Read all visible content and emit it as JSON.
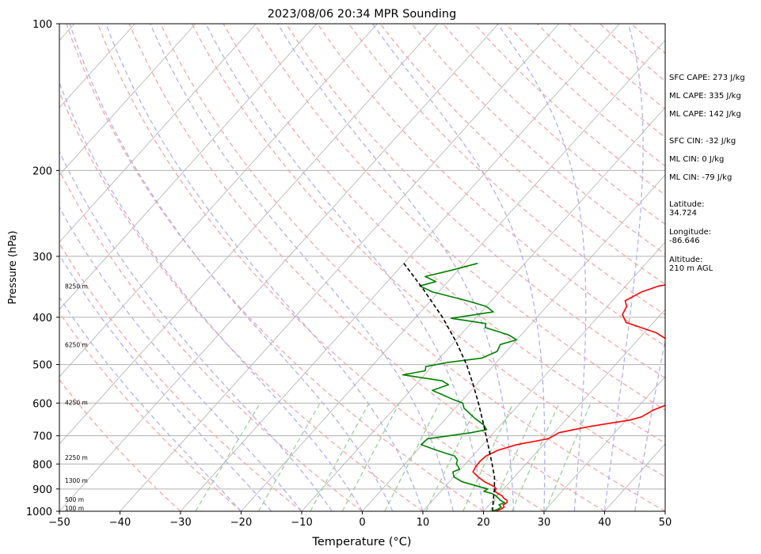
{
  "chart_data": {
    "type": "line",
    "subtype": "skew-t log-p sounding",
    "title": "2023/08/06 20:34 MPR Sounding",
    "xlabel": "Temperature (°C)",
    "ylabel": "Pressure (hPa)",
    "xlim": [
      -50,
      50
    ],
    "ylim": [
      1000,
      100
    ],
    "y_scale": "log",
    "grid": true,
    "x_ticks": [
      -50,
      -40,
      -30,
      -20,
      -10,
      0,
      10,
      20,
      30,
      40,
      50
    ],
    "y_ticks": [
      100,
      200,
      300,
      400,
      500,
      600,
      700,
      800,
      900,
      1000
    ],
    "height_labels": [
      {
        "text": "100 m",
        "pressure": 985
      },
      {
        "text": "500 m",
        "pressure": 945
      },
      {
        "text": "1300 m",
        "pressure": 865
      },
      {
        "text": "2250 m",
        "pressure": 775
      },
      {
        "text": "4250 m",
        "pressure": 598
      },
      {
        "text": "6250 m",
        "pressure": 455
      },
      {
        "text": "8250 m",
        "pressure": 345
      }
    ],
    "background_lines": {
      "isotherms_color": "#b0b0b0",
      "dry_adiabats_color": "#f4a6a6",
      "moist_adiabats_color": "#b0b0f0",
      "mixing_ratio_color": "#9bd09b"
    },
    "series": [
      {
        "color": "#ff0000",
        "points": [
          [
            1000,
            22
          ],
          [
            990,
            22.6
          ],
          [
            980,
            22.8
          ],
          [
            970,
            22.3
          ],
          [
            960,
            22.6
          ],
          [
            950,
            22.3
          ],
          [
            940,
            21.4
          ],
          [
            930,
            20.8
          ],
          [
            920,
            19.8
          ],
          [
            910,
            18.9
          ],
          [
            900,
            18.8
          ],
          [
            890,
            18.1
          ],
          [
            870,
            15.8
          ],
          [
            850,
            14.0
          ],
          [
            830,
            12.4
          ],
          [
            810,
            12.1
          ],
          [
            790,
            12.0
          ],
          [
            770,
            12.2
          ],
          [
            750,
            13.3
          ],
          [
            730,
            15.6
          ],
          [
            710,
            19.9
          ],
          [
            690,
            20.8
          ],
          [
            680,
            22.8
          ],
          [
            670,
            24.9
          ],
          [
            650,
            30.6
          ],
          [
            640,
            32.1
          ],
          [
            620,
            33.0
          ],
          [
            600,
            34.9
          ],
          [
            590,
            34.6
          ],
          [
            570,
            33.1
          ],
          [
            550,
            33.4
          ],
          [
            540,
            35.1
          ],
          [
            520,
            30.6
          ],
          [
            505,
            30.1
          ],
          [
            490,
            29.7
          ],
          [
            470,
            28.3
          ],
          [
            450,
            25.9
          ],
          [
            430,
            21.9
          ],
          [
            410,
            15.5
          ],
          [
            395,
            13.7
          ],
          [
            380,
            13.2
          ],
          [
            370,
            12.1
          ],
          [
            355,
            13.5
          ],
          [
            345,
            15.5
          ],
          [
            340,
            18.3
          ],
          [
            333,
            15.8
          ],
          [
            325,
            15.0
          ],
          [
            315,
            15.2
          ],
          [
            308,
            15.6
          ]
        ]
      },
      {
        "color": "#008000",
        "points": [
          [
            1000,
            21.5
          ],
          [
            990,
            22.1
          ],
          [
            980,
            22.3
          ],
          [
            970,
            21.6
          ],
          [
            960,
            22.2
          ],
          [
            950,
            21.2
          ],
          [
            940,
            20.5
          ],
          [
            930,
            19.8
          ],
          [
            920,
            18.8
          ],
          [
            910,
            17.1
          ],
          [
            900,
            17.4
          ],
          [
            890,
            15.6
          ],
          [
            870,
            12.1
          ],
          [
            850,
            10.0
          ],
          [
            830,
            9.1
          ],
          [
            820,
            9.8
          ],
          [
            810,
            9.2
          ],
          [
            800,
            8.5
          ],
          [
            785,
            8.1
          ],
          [
            770,
            7.0
          ],
          [
            760,
            5.1
          ],
          [
            745,
            2.4
          ],
          [
            730,
            -0.2
          ],
          [
            710,
            0.0
          ],
          [
            690,
            6.3
          ],
          [
            680,
            8.4
          ],
          [
            665,
            7.2
          ],
          [
            645,
            4.8
          ],
          [
            630,
            3.2
          ],
          [
            615,
            1.5
          ],
          [
            600,
            0.5
          ],
          [
            590,
            -1.6
          ],
          [
            575,
            -4.4
          ],
          [
            565,
            -6.4
          ],
          [
            550,
            -4.6
          ],
          [
            540,
            -6.2
          ],
          [
            525,
            -13.6
          ],
          [
            515,
            -10.5
          ],
          [
            505,
            -11.0
          ],
          [
            495,
            -8.0
          ],
          [
            485,
            -3.0
          ],
          [
            470,
            -1.5
          ],
          [
            455,
            -2.0
          ],
          [
            445,
            0.0
          ],
          [
            435,
            -2.0
          ],
          [
            420,
            -7.0
          ],
          [
            412,
            -7.5
          ],
          [
            402,
            -14.0
          ],
          [
            390,
            -8.0
          ],
          [
            380,
            -10.0
          ],
          [
            370,
            -14.0
          ],
          [
            355,
            -21.0
          ],
          [
            345,
            -24.0
          ],
          [
            338,
            -22.0
          ],
          [
            330,
            -24.5
          ],
          [
            320,
            -21.0
          ],
          [
            310,
            -17.8
          ]
        ]
      },
      {
        "color": "#000000",
        "dashed": true,
        "points": [
          [
            1000,
            21.5
          ],
          [
            950,
            20.0
          ],
          [
            900,
            18.5
          ],
          [
            850,
            16.7
          ],
          [
            800,
            14.4
          ],
          [
            750,
            11.9
          ],
          [
            700,
            9.2
          ],
          [
            650,
            6.3
          ],
          [
            600,
            3.1
          ],
          [
            550,
            -0.5
          ],
          [
            500,
            -4.6
          ],
          [
            450,
            -9.6
          ],
          [
            400,
            -15.6
          ],
          [
            350,
            -23.0
          ],
          [
            310,
            -30.0
          ]
        ]
      }
    ]
  },
  "stats": {
    "sfc_cape": "SFC CAPE: 273 J/kg",
    "ml_cape_1": "ML CAPE: 335 J/kg",
    "ml_cape_2": "ML CAPE: 142 J/kg",
    "sfc_cin": "SFC CIN: -32 J/kg",
    "ml_cin_1": "ML CIN: 0 J/kg",
    "ml_cin_2": "ML CIN: -79 J/kg",
    "latitude": "Latitude:\n34.724",
    "longitude": "Longitude:\n-86.646",
    "altitude": "Altitude:\n210 m AGL"
  }
}
